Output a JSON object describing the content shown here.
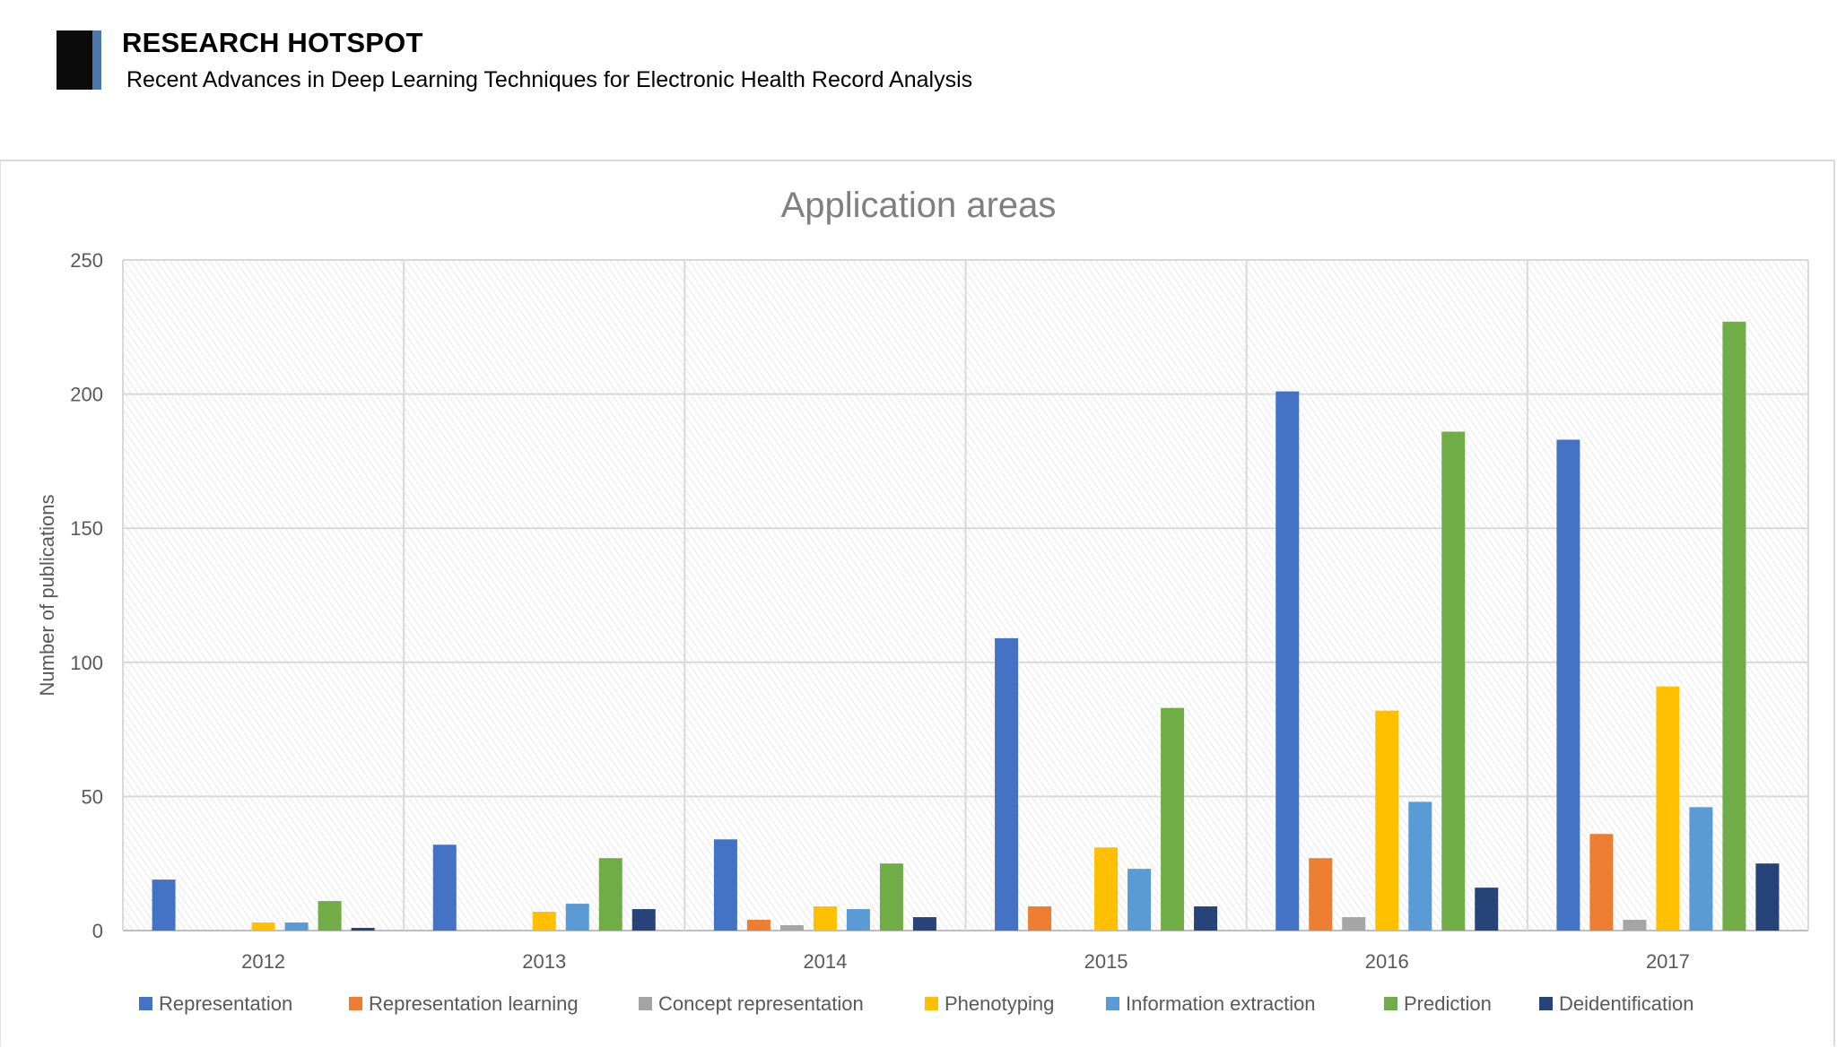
{
  "header": {
    "title": "RESEARCH HOTSPOT",
    "subtitle": "Recent Advances in Deep Learning Techniques for Electronic Health Record Analysis"
  },
  "chart_data": {
    "type": "bar",
    "title": "Application areas",
    "xlabel": "",
    "ylabel": "Number of publications",
    "ylim": [
      0,
      250
    ],
    "yticks": [
      0,
      50,
      100,
      150,
      200,
      250
    ],
    "grid": true,
    "legend_position": "bottom",
    "categories": [
      "2012",
      "2013",
      "2014",
      "2015",
      "2016",
      "2017"
    ],
    "series": [
      {
        "name": "Representation",
        "color": "#4472c4",
        "values": [
          19,
          32,
          34,
          109,
          201,
          183
        ]
      },
      {
        "name": "Representation learning",
        "color": "#ed7d31",
        "values": [
          0,
          0,
          4,
          9,
          27,
          36
        ]
      },
      {
        "name": "Concept representation",
        "color": "#a5a5a5",
        "values": [
          0,
          0,
          2,
          0,
          5,
          4
        ]
      },
      {
        "name": "Phenotyping",
        "color": "#ffc000",
        "values": [
          3,
          7,
          9,
          31,
          82,
          91
        ]
      },
      {
        "name": "Information extraction",
        "color": "#5b9bd5",
        "values": [
          3,
          10,
          8,
          23,
          48,
          46
        ]
      },
      {
        "name": "Prediction",
        "color": "#70ad47",
        "values": [
          11,
          27,
          25,
          83,
          186,
          227
        ]
      },
      {
        "name": "Deidentification",
        "color": "#264478",
        "values": [
          1,
          8,
          5,
          9,
          16,
          25
        ]
      }
    ]
  }
}
